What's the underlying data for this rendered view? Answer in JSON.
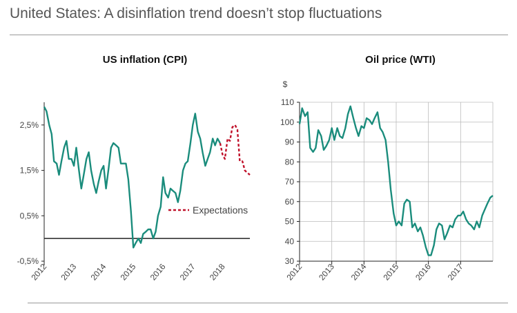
{
  "page": {
    "title": "United States: A disinflation trend doesn’t stop fluctuations"
  },
  "colors": {
    "series": "#1a8c7c",
    "expectations": "#c0112a",
    "axis": "#222222",
    "grid": "#bbbbbb"
  },
  "chart_data": [
    {
      "type": "line",
      "title": "US inflation (CPI)",
      "ylim": [
        -0.5,
        3.0
      ],
      "yticks": [
        -0.5,
        0.5,
        1.5,
        2.5
      ],
      "ytick_labels": [
        "-0,5%",
        "0,5%",
        "1,5%",
        "2,5%"
      ],
      "xlim": [
        2012,
        2018.92
      ],
      "xticks": [
        2012,
        2013,
        2014,
        2015,
        2016,
        2017,
        2018
      ],
      "xtick_labels": [
        "2012",
        "2013",
        "2014",
        "2015",
        "2016",
        "2017",
        "2018"
      ],
      "legend_label": "Expectations",
      "series": [
        {
          "name": "CPI",
          "x": [
            2012.0,
            2012.08,
            2012.17,
            2012.25,
            2012.33,
            2012.42,
            2012.5,
            2012.58,
            2012.67,
            2012.75,
            2012.83,
            2012.92,
            2013.0,
            2013.08,
            2013.17,
            2013.25,
            2013.33,
            2013.42,
            2013.5,
            2013.58,
            2013.67,
            2013.75,
            2013.83,
            2013.92,
            2014.0,
            2014.08,
            2014.17,
            2014.25,
            2014.33,
            2014.42,
            2014.5,
            2014.58,
            2014.67,
            2014.75,
            2014.83,
            2014.92,
            2015.0,
            2015.08,
            2015.17,
            2015.25,
            2015.33,
            2015.42,
            2015.5,
            2015.58,
            2015.67,
            2015.75,
            2015.83,
            2015.92,
            2016.0,
            2016.08,
            2016.17,
            2016.25,
            2016.33,
            2016.42,
            2016.5,
            2016.58,
            2016.67,
            2016.75,
            2016.83,
            2016.92,
            2017.0,
            2017.08,
            2017.17,
            2017.25,
            2017.33,
            2017.42,
            2017.5,
            2017.58,
            2017.67,
            2017.75,
            2017.83,
            2017.92
          ],
          "values": [
            2.9,
            2.8,
            2.5,
            2.3,
            1.7,
            1.65,
            1.4,
            1.7,
            2.0,
            2.15,
            1.75,
            1.75,
            1.6,
            2.0,
            1.5,
            1.1,
            1.4,
            1.75,
            1.9,
            1.5,
            1.2,
            1.0,
            1.25,
            1.5,
            1.6,
            1.1,
            1.55,
            2.0,
            2.1,
            2.05,
            2.0,
            1.65,
            1.65,
            1.65,
            1.3,
            0.6,
            -0.2,
            -0.1,
            0.0,
            -0.1,
            0.1,
            0.15,
            0.2,
            0.2,
            0.0,
            0.15,
            0.5,
            0.7,
            1.35,
            1.0,
            0.9,
            1.1,
            1.05,
            1.0,
            0.8,
            1.05,
            1.5,
            1.65,
            1.7,
            2.1,
            2.5,
            2.75,
            2.35,
            2.2,
            1.9,
            1.6,
            1.75,
            1.9,
            2.2,
            2.05,
            2.2,
            2.1
          ]
        },
        {
          "name": "Expectations",
          "x": [
            2017.92,
            2018.0,
            2018.08,
            2018.17,
            2018.25,
            2018.33,
            2018.42,
            2018.5,
            2018.58,
            2018.67,
            2018.75,
            2018.83,
            2018.92
          ],
          "values": [
            2.1,
            1.85,
            1.75,
            2.2,
            2.15,
            2.45,
            2.5,
            2.4,
            1.7,
            1.7,
            1.5,
            1.45,
            1.4
          ]
        }
      ]
    },
    {
      "type": "line",
      "title": "Oil price (WTI)",
      "ylabel": "$",
      "ylim": [
        30,
        110
      ],
      "yticks": [
        30,
        40,
        50,
        60,
        70,
        80,
        90,
        100,
        110
      ],
      "ytick_labels": [
        "30",
        "40",
        "50",
        "60",
        "70",
        "80",
        "90",
        "100",
        "110"
      ],
      "xlim": [
        2012,
        2018.0
      ],
      "xticks": [
        2012,
        2013,
        2014,
        2015,
        2016,
        2017
      ],
      "xtick_labels": [
        "2012",
        "2013",
        "2014",
        "2015",
        "2016",
        "2017"
      ],
      "grid": true,
      "series": [
        {
          "name": "WTI",
          "x": [
            2012.0,
            2012.08,
            2012.17,
            2012.25,
            2012.33,
            2012.42,
            2012.5,
            2012.58,
            2012.67,
            2012.75,
            2012.83,
            2012.92,
            2013.0,
            2013.08,
            2013.17,
            2013.25,
            2013.33,
            2013.42,
            2013.5,
            2013.58,
            2013.67,
            2013.75,
            2013.83,
            2013.92,
            2014.0,
            2014.08,
            2014.17,
            2014.25,
            2014.33,
            2014.42,
            2014.5,
            2014.58,
            2014.67,
            2014.75,
            2014.83,
            2014.92,
            2015.0,
            2015.08,
            2015.17,
            2015.25,
            2015.33,
            2015.42,
            2015.5,
            2015.58,
            2015.67,
            2015.75,
            2015.83,
            2015.92,
            2016.0,
            2016.08,
            2016.17,
            2016.25,
            2016.33,
            2016.42,
            2016.5,
            2016.58,
            2016.67,
            2016.75,
            2016.83,
            2016.92,
            2017.0,
            2017.08,
            2017.17,
            2017.25,
            2017.33,
            2017.42,
            2017.5,
            2017.58,
            2017.67,
            2017.75,
            2017.83,
            2017.92,
            2018.0
          ],
          "values": [
            99,
            107,
            103,
            105,
            87,
            85,
            87,
            96,
            93,
            86,
            88,
            91,
            97,
            91,
            97,
            93,
            92,
            97,
            104,
            108,
            102,
            97,
            93,
            98,
            97,
            102,
            101,
            99,
            102,
            105,
            97,
            95,
            91,
            80,
            66,
            54,
            48,
            50,
            48,
            59,
            61,
            60,
            47,
            49,
            45,
            47,
            43,
            37,
            33,
            33,
            38,
            46,
            49,
            48,
            41,
            44,
            48,
            47,
            51,
            53,
            53,
            55,
            51,
            49,
            48,
            46,
            50,
            47,
            53,
            56,
            59,
            62,
            63
          ]
        }
      ]
    }
  ]
}
